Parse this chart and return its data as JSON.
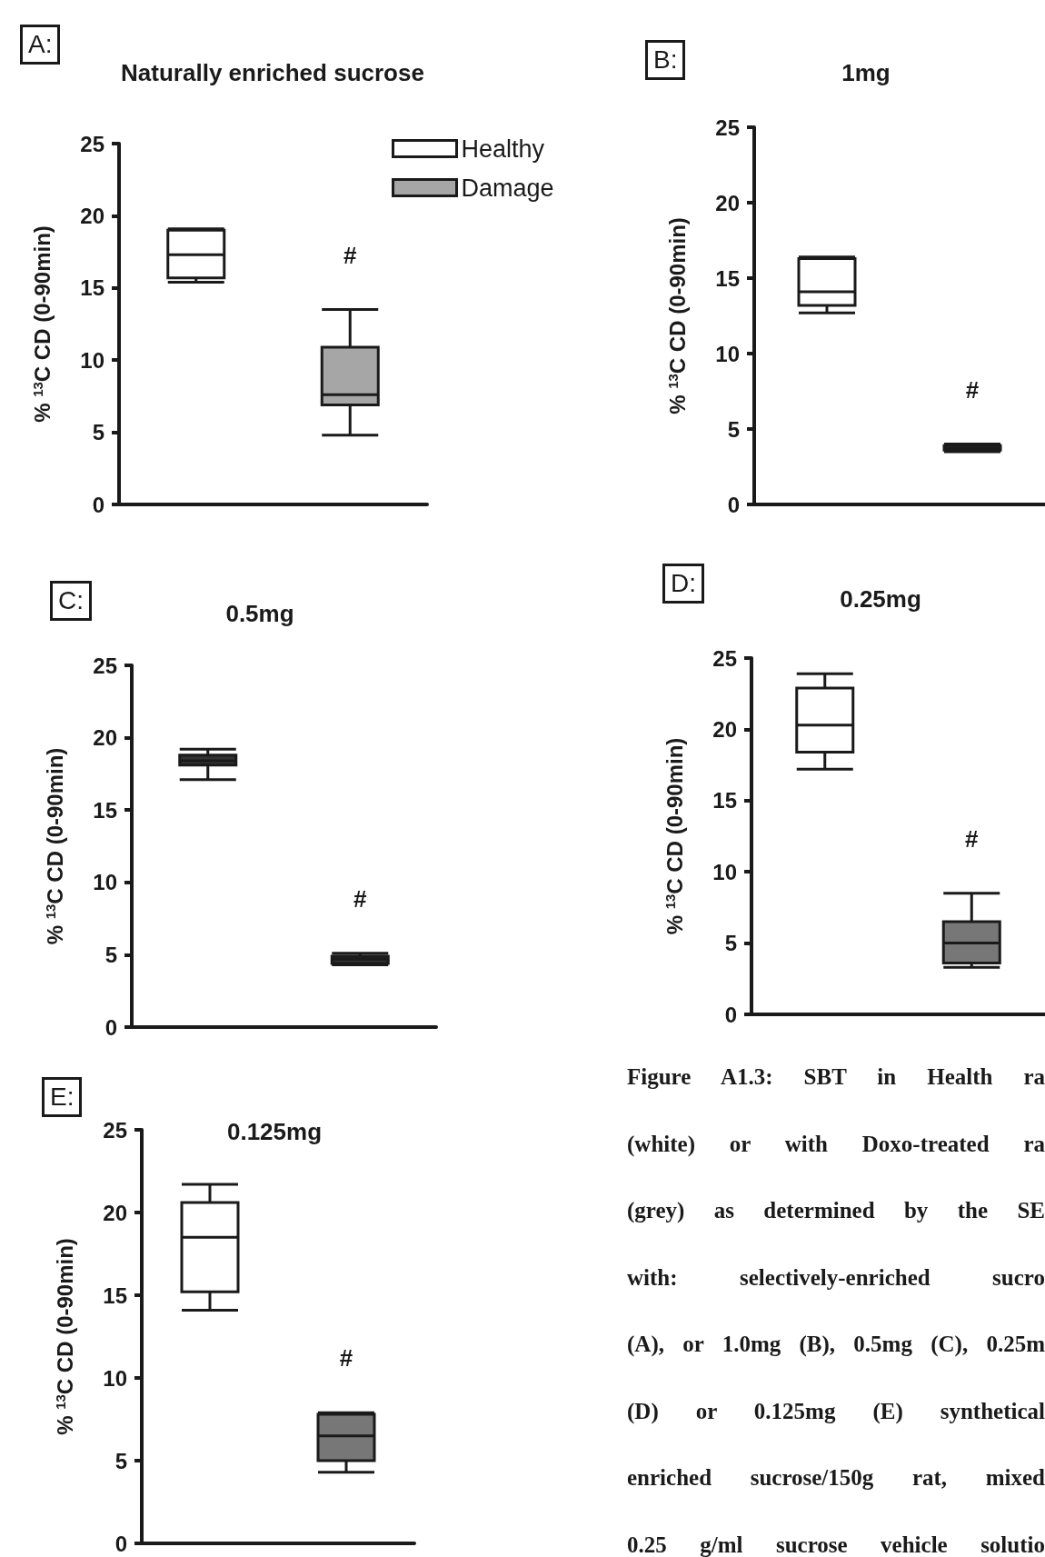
{
  "chart_data": [
    {
      "type": "box",
      "title": "Naturally enriched sucrose",
      "ylabel": "% $^{13}$C CD (0-90min)",
      "categories": [
        null,
        null
      ],
      "ylim": [
        0,
        25
      ],
      "yticks": [
        0,
        5,
        10,
        15,
        20,
        25
      ],
      "tick_labels": "y",
      "legend": "top right",
      "annotations": [
        "A:",
        "#"
      ],
      "series": [
        {
          "name": "Healthy",
          "color": "#ffffff",
          "boxes": [
            {
              "low": 15.4,
              "q1": 15.7,
              "median": 17.3,
              "q3": 19.0,
              "high": 19.1
            },
            null
          ]
        },
        {
          "name": "Damage",
          "color": "#a6a6a6",
          "boxes": [
            null,
            {
              "low": 4.8,
              "q1": 6.9,
              "median": 7.6,
              "q3": 10.9,
              "high": 13.5
            }
          ]
        }
      ]
    },
    {
      "type": "box",
      "title": "1mg",
      "ylabel": "% $^{13}$C CD (0-90min)",
      "categories": [
        null,
        null
      ],
      "ylim": [
        0,
        25
      ],
      "yticks": [
        0,
        5,
        10,
        15,
        20,
        25
      ],
      "tick_labels": "y",
      "annotations": [
        "B:",
        "#"
      ],
      "series": [
        {
          "color": "#ffffff",
          "boxes": [
            {
              "low": 12.7,
              "q1": 13.2,
              "median": 14.1,
              "q3": 16.3,
              "high": 16.4
            },
            null
          ]
        },
        {
          "color": "#333333",
          "boxes": [
            null,
            {
              "low": 3.5,
              "q1": 3.6,
              "median": 3.7,
              "q3": 3.9,
              "high": 4.0
            }
          ]
        }
      ]
    },
    {
      "type": "box",
      "title": "0.5mg",
      "ylabel": "% $^{13}$C CD (0-90min)",
      "categories": [
        null,
        null
      ],
      "ylim": [
        0,
        25
      ],
      "yticks": [
        0,
        5,
        10,
        15,
        20,
        25
      ],
      "tick_labels": "y",
      "annotations": [
        "C:",
        "#"
      ],
      "series": [
        {
          "color": "#333333",
          "boxes": [
            {
              "low": 17.1,
              "q1": 18.1,
              "median": 18.4,
              "q3": 18.8,
              "high": 19.2
            },
            null
          ]
        },
        {
          "color": "#333333",
          "boxes": [
            null,
            {
              "low": 4.3,
              "q1": 4.4,
              "median": 4.7,
              "q3": 4.9,
              "high": 5.1
            }
          ]
        }
      ]
    },
    {
      "type": "box",
      "title": "0.25mg",
      "ylabel": "% $^{13}$C CD (0-90min)",
      "categories": [
        null,
        null
      ],
      "ylim": [
        0,
        25
      ],
      "yticks": [
        0,
        5,
        10,
        15,
        20,
        25
      ],
      "tick_labels": "y",
      "annotations": [
        "D:",
        "#"
      ],
      "series": [
        {
          "color": "#ffffff",
          "boxes": [
            {
              "low": 17.2,
              "q1": 18.4,
              "median": 20.3,
              "q3": 22.9,
              "high": 23.9
            },
            null
          ]
        },
        {
          "color": "#777777",
          "boxes": [
            null,
            {
              "low": 3.3,
              "q1": 3.6,
              "median": 5.0,
              "q3": 6.5,
              "high": 8.5
            }
          ]
        }
      ]
    },
    {
      "type": "box",
      "title": "0.125mg",
      "ylabel": "% $^{13}$C CD (0-90min)",
      "categories": [
        null,
        null
      ],
      "ylim": [
        0,
        25
      ],
      "yticks": [
        0,
        5,
        10,
        15,
        20,
        25
      ],
      "tick_labels": "y",
      "annotations": [
        "E:",
        "#"
      ],
      "series": [
        {
          "color": "#ffffff",
          "boxes": [
            {
              "low": 14.1,
              "q1": 15.2,
              "median": 18.5,
              "q3": 20.6,
              "high": 21.7
            },
            null
          ]
        },
        {
          "color": "#777777",
          "boxes": [
            null,
            {
              "low": 4.3,
              "q1": 5.0,
              "median": 6.5,
              "q3": 7.8,
              "high": 7.9
            }
          ]
        }
      ]
    },
    {
      "type": "other",
      "annotations": [
        "Figure A1.3: SBT in Health ra",
        "(white) or with Doxo-treated ra",
        "(grey) as determined by the SE",
        "with: selectively-enriched sucro",
        "(A), or 1.0mg (B), 0.5mg (C), 0.25m",
        "(D) or 0.125mg (E) synthetical",
        "enriched sucrose/150g rat, mixed",
        "0.25 g/ml sucrose vehicle solutio"
      ]
    }
  ]
}
